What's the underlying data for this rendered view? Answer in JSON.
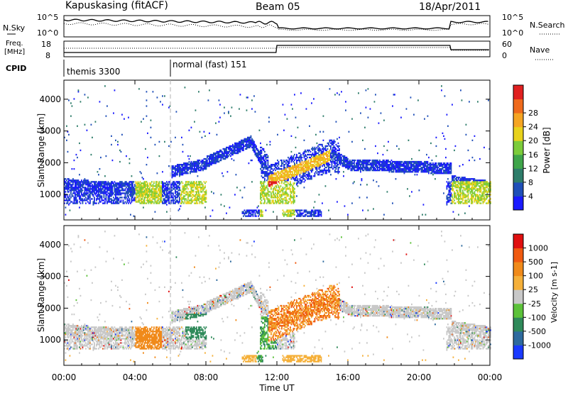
{
  "header": {
    "station": "Kapuskasing (fitACF)",
    "beam": "Beam 05",
    "date": "18/Apr/2011"
  },
  "noise_panel": {
    "left_label": "N.Sky",
    "right_label": "N.Search",
    "left_ticks": [
      "10^5",
      "10^0"
    ],
    "right_ticks": [
      "10^5",
      "10^0"
    ]
  },
  "freq_panel": {
    "left_label_1": "Freq.",
    "left_label_2": "[MHz]",
    "right_label": "Nave",
    "left_ticks": [
      "18",
      "8"
    ],
    "right_ticks": [
      "60",
      "0"
    ]
  },
  "cpid_panel": {
    "label": "CPID",
    "modes": [
      {
        "name": "themis 3300",
        "start_hour": 0
      },
      {
        "name": "normal (fast) 151",
        "start_hour": 5.9
      }
    ]
  },
  "chart_data": [
    {
      "type": "heatmap",
      "name": "power",
      "ylabel": "Slant Range [km]",
      "yticks": [
        1000,
        2000,
        3000,
        4000
      ],
      "ylim": [
        200,
        4600
      ],
      "colorbar_title": "Power [dB]",
      "colorbar_ticks": [
        4,
        8,
        12,
        16,
        20,
        24,
        28
      ],
      "colorbar_colors": [
        "#1a1aff",
        "#1f4fb8",
        "#2e7d6a",
        "#3fa54a",
        "#7ccc3a",
        "#e8d21c",
        "#f5a523",
        "#ef6a1c",
        "#e02020"
      ]
    },
    {
      "type": "heatmap",
      "name": "velocity",
      "ylabel": "Slant Range [km]",
      "yticks": [
        1000,
        2000,
        3000,
        4000
      ],
      "ylim": [
        200,
        4600
      ],
      "colorbar_title": "Velocity [m s-1]",
      "colorbar_ticks": [
        "1000",
        "500",
        "100",
        "25",
        "-25",
        "-100",
        "-500",
        "-1000"
      ],
      "colorbar_colors": [
        "#1a3aff",
        "#2e6a9e",
        "#2f8a5a",
        "#5cc23a",
        "#c8c8c8",
        "#f5b03a",
        "#f08a1a",
        "#f05a10",
        "#e01010"
      ]
    }
  ],
  "xaxis": {
    "label": "Time UT",
    "ticks": [
      "00:00",
      "04:00",
      "08:00",
      "12:00",
      "16:00",
      "20:00",
      "00:00"
    ],
    "range_hours": [
      0,
      24
    ]
  },
  "colors": {
    "frame": "#000000",
    "dashed": "#b0b0b0"
  }
}
